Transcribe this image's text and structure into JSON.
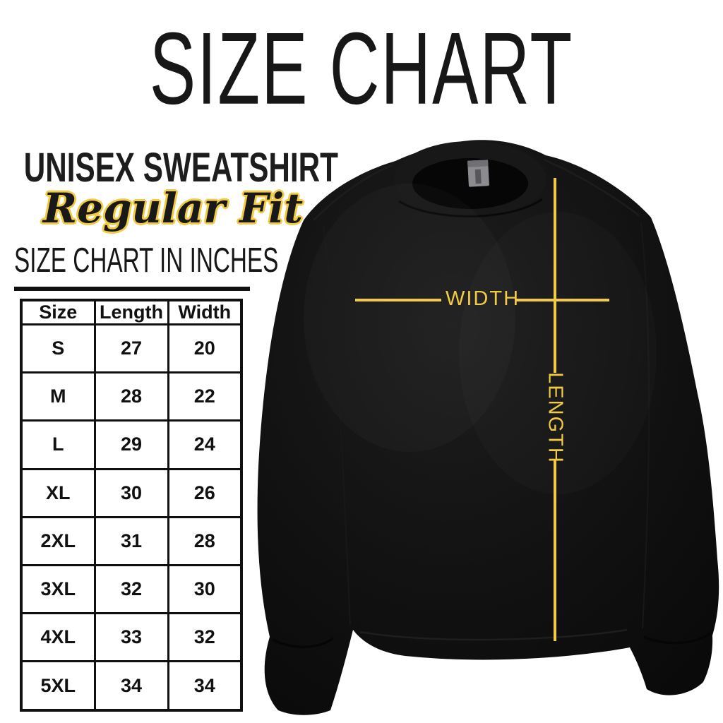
{
  "header": {
    "title": "SIZE CHART",
    "product": "UNISEX SWEATSHIRT",
    "fit": "Regular Fit"
  },
  "table_section": {
    "heading": "SIZE CHART IN INCHES"
  },
  "size_table": {
    "columns": [
      "Size",
      "Length",
      "Width"
    ],
    "rows": [
      {
        "size": "S",
        "length": "27",
        "width": "20"
      },
      {
        "size": "M",
        "length": "28",
        "width": "22"
      },
      {
        "size": "L",
        "length": "29",
        "width": "24"
      },
      {
        "size": "XL",
        "length": "30",
        "width": "26"
      },
      {
        "size": "2XL",
        "length": "31",
        "width": "28"
      },
      {
        "size": "3XL",
        "length": "32",
        "width": "30"
      },
      {
        "size": "4XL",
        "length": "33",
        "width": "32"
      },
      {
        "size": "5XL",
        "length": "34",
        "width": "34"
      }
    ]
  },
  "measurements": {
    "width_label": "WIDTH",
    "length_label": "LENGTH"
  },
  "colors": {
    "accent_yellow": "#F2CB44",
    "ink": "#161616",
    "garment_black": "#101010",
    "tag_gray": "#8B8B90"
  }
}
